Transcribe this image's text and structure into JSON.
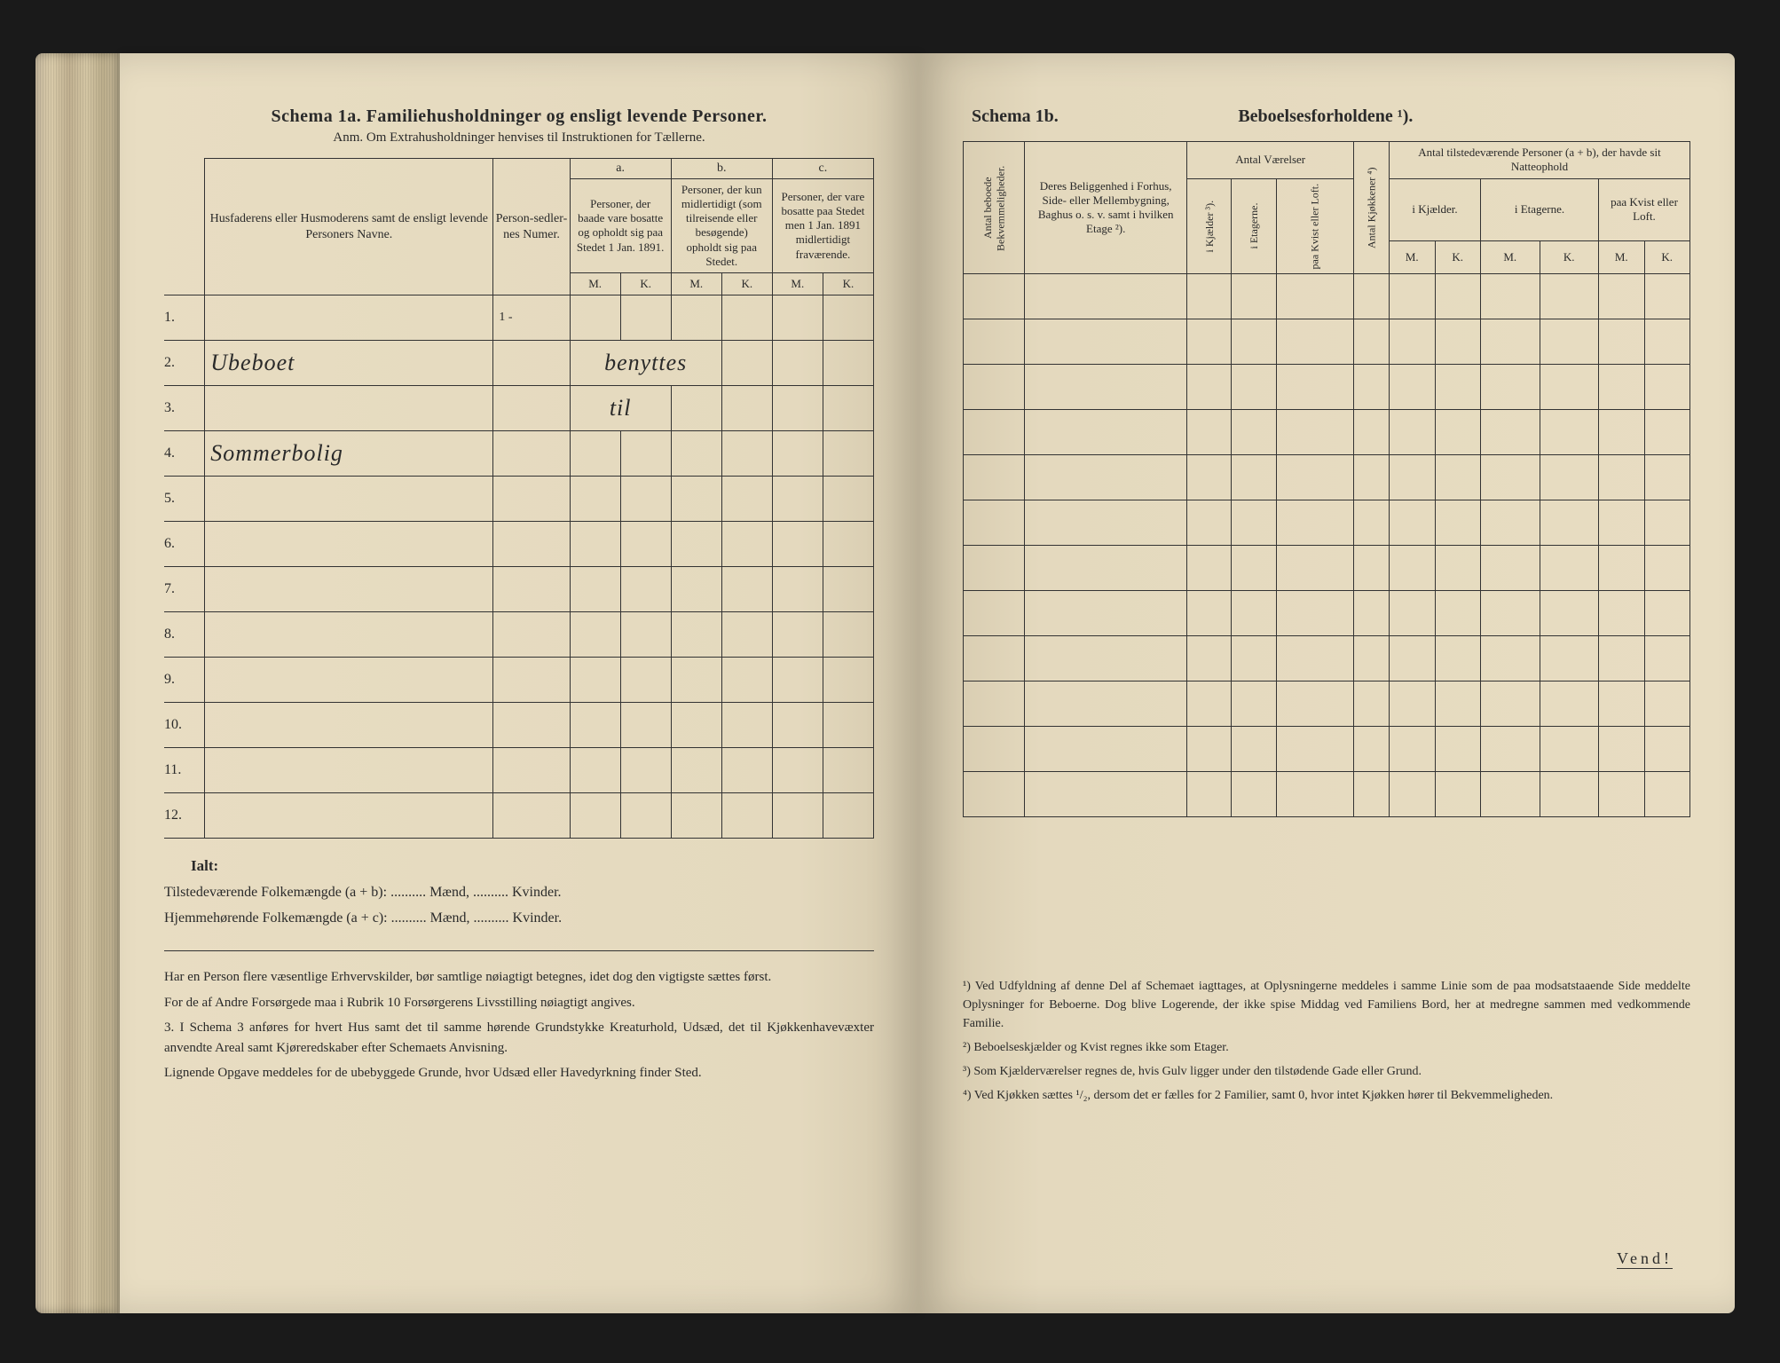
{
  "left": {
    "schema_title": "Schema 1a.  Familiehusholdninger og ensligt levende Personer.",
    "anm": "Anm. Om Extrahusholdninger henvises til Instruktionen for Tællerne.",
    "header_names": "Husfaderens eller Husmoderens samt de ensligt levende Personers Navne.",
    "header_personsedler": "Person-sedler-nes Numer.",
    "header_a": "a.",
    "header_b": "b.",
    "header_c": "c.",
    "header_a_text": "Personer, der baade vare bosatte og opholdt sig paa Stedet 1 Jan. 1891.",
    "header_b_text": "Personer, der kun midlertidigt (som tilreisende eller besøgende) opholdt sig paa Stedet.",
    "header_c_text": "Personer, der vare bosatte paa Stedet men 1 Jan. 1891 midlertidigt fraværende.",
    "mk_m": "M.",
    "mk_k": "K.",
    "row_labels": [
      "1.",
      "2.",
      "3.",
      "4.",
      "5.",
      "6.",
      "7.",
      "8.",
      "9.",
      "10.",
      "11.",
      "12."
    ],
    "hand1": "Ubeboet",
    "hand2": "benyttes",
    "hand3": "til",
    "hand4": "Sommerbolig",
    "ialt": "Ialt:",
    "total1": "Tilstedeværende Folkemængde (a + b): .......... Mænd, .......... Kvinder.",
    "total2": "Hjemmehørende Folkemængde (a + c): .......... Mænd, .......... Kvinder.",
    "fn1": "Har en Person flere væsentlige Erhvervskilder, bør samtlige nøiagtigt betegnes, idet dog den vigtigste sættes først.",
    "fn2": "For de af Andre Forsørgede maa i Rubrik 10 Forsørgerens Livsstilling nøiagtigt angives.",
    "fn3_num": "3.",
    "fn3": "I Schema 3 anføres for hvert Hus samt det til samme hørende Grundstykke Kreaturhold, Udsæd, det til Kjøkkenhavevæxter anvendte Areal samt Kjøreredskaber efter Schemaets Anvisning.",
    "fn4": "Lignende Opgave meddeles for de ubebyggede Grunde, hvor Udsæd eller Havedyrkning finder Sted."
  },
  "right": {
    "schema_label": "Schema 1b.",
    "title": "Beboelsesforholdene ¹).",
    "h_antal_beboede": "Antal beboede Bekvemmeligheder.",
    "h_beliggenhed": "Deres Beliggenhed i Forhus, Side- eller Mellembygning, Baghus o. s. v. samt i hvilken Etage ²).",
    "h_antal_vaerelser": "Antal Værelser",
    "h_antal_kjokkener": "Antal Kjøkkener ⁴)",
    "h_antal_tilstede": "Antal tilstedeværende Personer (a + b), der havde sit Natteophold",
    "h_kjaelder": "i Kjælder ³).",
    "h_etagerne": "i Etagerne.",
    "h_kvist_loft": "paa Kvist eller Loft.",
    "h_kjael_der": "i Kjælder.",
    "h_i_etagerne": "i Etagerne.",
    "h_paa_kvist": "paa Kvist eller Loft.",
    "mk_m": "M.",
    "mk_k": "K.",
    "fn1": "¹) Ved Udfyldning af denne Del af Schemaet iagttages, at Oplysningerne meddeles i samme Linie som de paa modsatstaaende Side meddelte Oplysninger for Beboerne. Dog blive Logerende, der ikke spise Middag ved Familiens Bord, her at medregne sammen med vedkommende Familie.",
    "fn2": "²) Beboelseskjælder og Kvist regnes ikke som Etager.",
    "fn3": "³) Som Kjælderværelser regnes de, hvis Gulv ligger under den tilstødende Gade eller Grund.",
    "fn4": "⁴) Ved Kjøkken sættes ¹/₂, dersom det er fælles for 2 Familier, samt 0, hvor intet Kjøkken hører til Bekvemmeligheden.",
    "vend": "Vend!"
  },
  "colors": {
    "paper": "#e8ddc2",
    "ink": "#2a2a2a",
    "background": "#1a1a1a"
  }
}
